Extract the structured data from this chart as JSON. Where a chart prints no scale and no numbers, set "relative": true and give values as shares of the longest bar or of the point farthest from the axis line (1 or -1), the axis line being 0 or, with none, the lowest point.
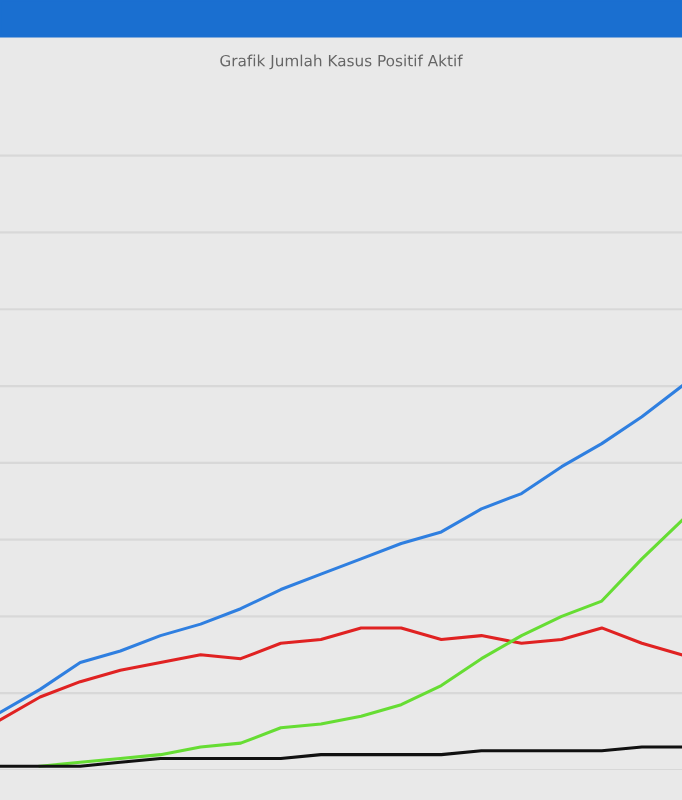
{
  "chart_data": {
    "type": "line",
    "title": "Grafik Jumlah Kasus Positif Aktif",
    "relative": true,
    "grid": "y",
    "categories": [
      null,
      null,
      null,
      null,
      null,
      null,
      null,
      null,
      null,
      null,
      null,
      null,
      null,
      null,
      null,
      null,
      null,
      null
    ],
    "series": [
      {
        "color": "#2f7fe0",
        "values": [
          0.15,
          0.21,
          0.28,
          0.31,
          0.35,
          0.38,
          0.42,
          0.47,
          0.51,
          0.55,
          0.59,
          0.62,
          0.68,
          0.72,
          0.79,
          0.85,
          0.92,
          1.0
        ]
      },
      {
        "color": "#e02222",
        "values": [
          0.13,
          0.19,
          0.23,
          0.26,
          0.28,
          0.3,
          0.29,
          0.33,
          0.34,
          0.37,
          0.37,
          0.34,
          0.35,
          0.33,
          0.34,
          0.37,
          0.33,
          0.3
        ]
      },
      {
        "color": "#66dd33",
        "values": [
          null,
          0.01,
          0.02,
          0.03,
          0.04,
          0.06,
          0.07,
          0.11,
          0.12,
          0.14,
          0.17,
          0.22,
          0.29,
          0.35,
          0.4,
          0.44,
          0.55,
          0.65
        ]
      },
      {
        "color": "#111111",
        "values": [
          0.01,
          0.01,
          0.01,
          0.02,
          0.03,
          0.03,
          0.03,
          0.03,
          0.04,
          0.04,
          0.04,
          0.04,
          0.05,
          0.05,
          0.05,
          0.05,
          0.06,
          0.06
        ]
      }
    ]
  }
}
